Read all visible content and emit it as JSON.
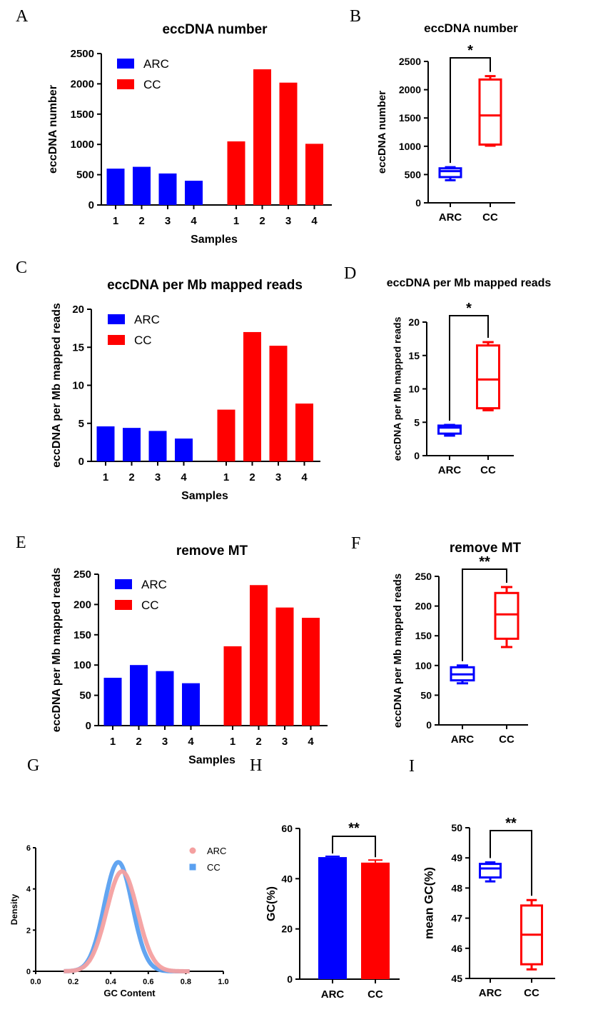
{
  "colors": {
    "ARC": "#0000ff",
    "CC": "#ff0000",
    "ARC_density": "#f4a0a0",
    "CC_density": "#5aa0f0"
  },
  "chart_data": [
    {
      "panel": "A",
      "type": "bar",
      "title": "eccDNA number",
      "xlabel": "Samples",
      "ylabel": "eccDNA number",
      "ylim": [
        0,
        2500
      ],
      "yticks": [
        0,
        500,
        1000,
        1500,
        2000,
        2500
      ],
      "categories": [
        "1",
        "2",
        "3",
        "4"
      ],
      "series": [
        {
          "name": "ARC",
          "values": [
            600,
            630,
            520,
            400
          ]
        },
        {
          "name": "CC",
          "values": [
            1050,
            2240,
            2020,
            1010
          ]
        }
      ]
    },
    {
      "panel": "B",
      "type": "box",
      "title": "eccDNA number",
      "ylabel": "eccDNA number",
      "ylim": [
        0,
        2500
      ],
      "yticks": [
        0,
        500,
        1000,
        1500,
        2000,
        2500
      ],
      "categories": [
        "ARC",
        "CC"
      ],
      "significance": "*",
      "boxes": [
        {
          "name": "ARC",
          "min": 400,
          "q1": 455,
          "median": 560,
          "q3": 610,
          "max": 630
        },
        {
          "name": "CC",
          "min": 1010,
          "q1": 1030,
          "median": 1545,
          "q3": 2180,
          "max": 2240
        }
      ]
    },
    {
      "panel": "C",
      "type": "bar",
      "title": "eccDNA per Mb mapped reads",
      "xlabel": "Samples",
      "ylabel": "eccDNA per Mb mapped reads",
      "ylim": [
        0,
        20
      ],
      "yticks": [
        0,
        5,
        10,
        15,
        20
      ],
      "categories": [
        "1",
        "2",
        "3",
        "4"
      ],
      "series": [
        {
          "name": "ARC",
          "values": [
            4.6,
            4.4,
            4.0,
            3.0
          ]
        },
        {
          "name": "CC",
          "values": [
            6.8,
            17.0,
            15.2,
            7.6
          ]
        }
      ]
    },
    {
      "panel": "D",
      "type": "box",
      "title": "eccDNA per Mb mapped reads",
      "ylabel": "eccDNA per Mb mapped reads",
      "ylim": [
        0,
        20
      ],
      "yticks": [
        0,
        5,
        10,
        15,
        20
      ],
      "categories": [
        "ARC",
        "CC"
      ],
      "significance": "*",
      "boxes": [
        {
          "name": "ARC",
          "min": 3.0,
          "q1": 3.3,
          "median": 4.2,
          "q3": 4.5,
          "max": 4.6
        },
        {
          "name": "CC",
          "min": 6.8,
          "q1": 7.1,
          "median": 11.4,
          "q3": 16.5,
          "max": 17.0
        }
      ]
    },
    {
      "panel": "E",
      "type": "bar",
      "title": "remove MT",
      "xlabel": "Samples",
      "ylabel": "eccDNA per Mb mapped reads",
      "ylim": [
        0,
        250
      ],
      "yticks": [
        0,
        50,
        100,
        150,
        200,
        250
      ],
      "categories": [
        "1",
        "2",
        "3",
        "4"
      ],
      "series": [
        {
          "name": "ARC",
          "values": [
            79,
            100,
            90,
            70
          ]
        },
        {
          "name": "CC",
          "values": [
            131,
            232,
            195,
            178
          ]
        }
      ]
    },
    {
      "panel": "F",
      "type": "box",
      "title": "remove MT",
      "ylabel": "eccDNA per Mb mapped reads",
      "ylim": [
        0,
        250
      ],
      "yticks": [
        0,
        50,
        100,
        150,
        200,
        250
      ],
      "categories": [
        "ARC",
        "CC"
      ],
      "significance": "**",
      "boxes": [
        {
          "name": "ARC",
          "min": 70,
          "q1": 75,
          "median": 85,
          "q3": 97,
          "max": 100
        },
        {
          "name": "CC",
          "min": 131,
          "q1": 145,
          "median": 186,
          "q3": 222,
          "max": 232
        }
      ]
    },
    {
      "panel": "G",
      "type": "line",
      "title": "",
      "xlabel": "GC Content",
      "ylabel": "Density",
      "xlim": [
        0.0,
        1.0
      ],
      "xticks": [
        0.0,
        0.2,
        0.4,
        0.6,
        0.8,
        1.0
      ],
      "ylim": [
        0,
        6
      ],
      "yticks": [
        0,
        2,
        4,
        6
      ],
      "series": [
        {
          "name": "ARC",
          "peak_x": 0.46,
          "peak_y": 4.85,
          "sd": 0.082,
          "range": [
            0.15,
            0.82
          ]
        },
        {
          "name": "CC",
          "peak_x": 0.44,
          "peak_y": 5.3,
          "sd": 0.075,
          "range": [
            0.15,
            0.82
          ]
        }
      ]
    },
    {
      "panel": "H",
      "type": "bar",
      "title": "",
      "ylabel": "GC(%)",
      "ylim": [
        0,
        60
      ],
      "yticks": [
        0,
        20,
        40,
        60
      ],
      "categories": [
        "ARC",
        "CC"
      ],
      "significance": "**",
      "values": [
        48.6,
        46.4
      ],
      "errors": [
        0.3,
        1.0
      ]
    },
    {
      "panel": "I",
      "type": "box",
      "title": "",
      "ylabel": "mean GC(%)",
      "ylim": [
        45,
        50
      ],
      "yticks": [
        45,
        46,
        47,
        48,
        49,
        50
      ],
      "categories": [
        "ARC",
        "CC"
      ],
      "significance": "**",
      "boxes": [
        {
          "name": "ARC",
          "min": 48.22,
          "q1": 48.35,
          "median": 48.65,
          "q3": 48.8,
          "max": 48.85
        },
        {
          "name": "CC",
          "min": 45.3,
          "q1": 45.47,
          "median": 46.45,
          "q3": 47.42,
          "max": 47.6
        }
      ]
    }
  ]
}
